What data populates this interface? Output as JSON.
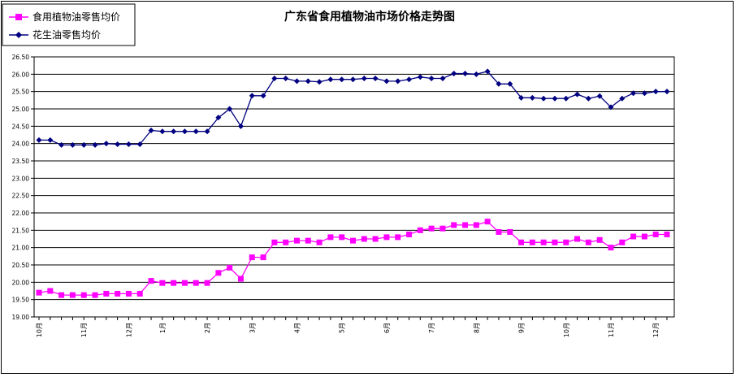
{
  "chart_data": {
    "type": "line",
    "title": "广东省食用植物油市场价格走势图",
    "xlabel": "",
    "ylabel": "",
    "ylim": [
      19.0,
      26.5
    ],
    "ytick_step": 0.5,
    "yticks": [
      "19.00",
      "19.50",
      "20.00",
      "20.50",
      "21.00",
      "21.50",
      "22.00",
      "22.50",
      "23.00",
      "23.50",
      "24.00",
      "24.50",
      "25.00",
      "25.50",
      "26.00",
      "26.50"
    ],
    "grid": "horizontal",
    "legend_position": "top-left",
    "x_tick_labels": [
      {
        "index": 0,
        "label": "10月"
      },
      {
        "index": 4,
        "label": "11月"
      },
      {
        "index": 8,
        "label": "12月"
      },
      {
        "index": 11,
        "label": "1月"
      },
      {
        "index": 15,
        "label": "2月"
      },
      {
        "index": 19,
        "label": "3月"
      },
      {
        "index": 23,
        "label": "4月"
      },
      {
        "index": 27,
        "label": "5月"
      },
      {
        "index": 31,
        "label": "6月"
      },
      {
        "index": 35,
        "label": "7月"
      },
      {
        "index": 39,
        "label": "8月"
      },
      {
        "index": 43,
        "label": "9月"
      },
      {
        "index": 47,
        "label": "10月"
      },
      {
        "index": 51,
        "label": "11月"
      },
      {
        "index": 55,
        "label": "12月"
      }
    ],
    "series": [
      {
        "name": "食用植物油零售均价",
        "color": "#FF00FF",
        "marker": "square",
        "values": [
          19.7,
          19.75,
          19.63,
          19.63,
          19.63,
          19.63,
          19.67,
          19.67,
          19.67,
          19.67,
          20.04,
          19.98,
          19.98,
          19.98,
          19.98,
          19.98,
          20.27,
          20.42,
          20.1,
          20.72,
          20.72,
          21.15,
          21.15,
          21.2,
          21.2,
          21.15,
          21.3,
          21.3,
          21.2,
          21.25,
          21.25,
          21.3,
          21.3,
          21.38,
          21.5,
          21.55,
          21.55,
          21.65,
          21.65,
          21.65,
          21.75,
          21.45,
          21.45,
          21.15,
          21.15,
          21.15,
          21.15,
          21.15,
          21.25,
          21.15,
          21.22,
          21.0,
          21.15,
          21.32,
          21.32,
          21.38,
          21.38
        ]
      },
      {
        "name": "花生油零售均价",
        "color": "#000080",
        "marker": "diamond",
        "values": [
          24.1,
          24.1,
          23.96,
          23.96,
          23.96,
          23.96,
          24.0,
          23.98,
          23.98,
          23.98,
          24.38,
          24.35,
          24.35,
          24.35,
          24.35,
          24.35,
          24.75,
          25.0,
          24.5,
          25.38,
          25.38,
          25.88,
          25.88,
          25.8,
          25.8,
          25.78,
          25.85,
          25.85,
          25.85,
          25.88,
          25.88,
          25.8,
          25.8,
          25.85,
          25.92,
          25.88,
          25.88,
          26.02,
          26.02,
          26.0,
          26.08,
          25.72,
          25.72,
          25.32,
          25.32,
          25.3,
          25.3,
          25.3,
          25.42,
          25.3,
          25.37,
          25.05,
          25.3,
          25.45,
          25.45,
          25.5,
          25.5
        ]
      }
    ]
  }
}
